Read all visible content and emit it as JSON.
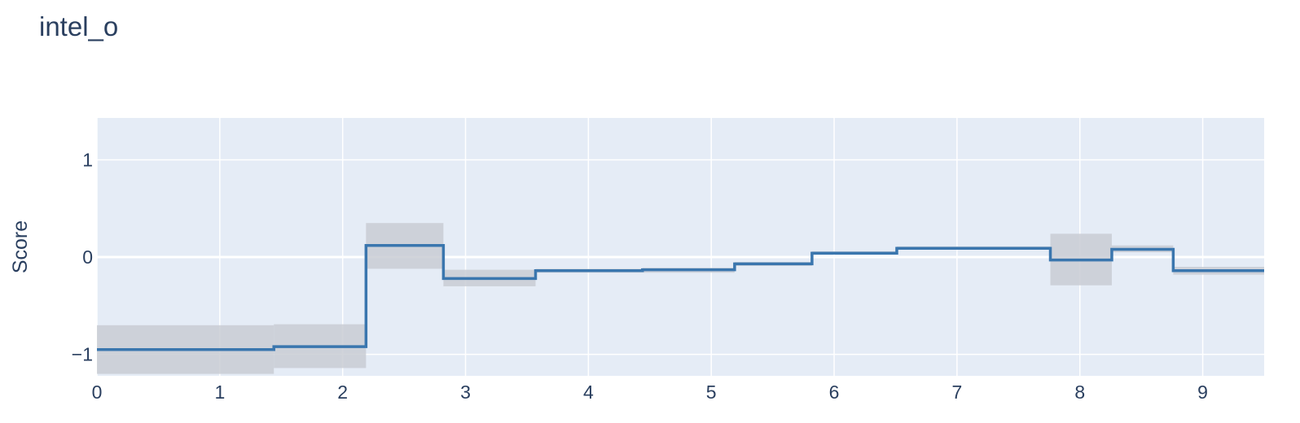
{
  "chart_data": {
    "type": "line",
    "line_shape": "step",
    "title": "intel_o",
    "xlabel": "",
    "ylabel": "Score",
    "xlim": [
      0,
      9.5
    ],
    "ylim": [
      -1.22,
      1.43
    ],
    "xticks": [
      0,
      1,
      2,
      3,
      4,
      5,
      6,
      7,
      8,
      9
    ],
    "yticks": [
      1,
      0,
      -1
    ],
    "ytick_labels": [
      "1",
      "0",
      "−1"
    ],
    "grid": true,
    "legend": "none",
    "colors": {
      "line": "#3a76ae",
      "band": "#c9ccd3",
      "plot_bg": "#e5ecf6",
      "grid": "#ffffff",
      "text": "#2a3f5f"
    },
    "series": [
      {
        "steps": [
          {
            "x0": 0.0,
            "x1": 1.44,
            "y": -0.95,
            "lower": -1.2,
            "upper": -0.7
          },
          {
            "x0": 1.44,
            "x1": 2.19,
            "y": -0.92,
            "lower": -1.14,
            "upper": -0.69
          },
          {
            "x0": 2.19,
            "x1": 2.82,
            "y": 0.12,
            "lower": -0.12,
            "upper": 0.35
          },
          {
            "x0": 2.82,
            "x1": 3.57,
            "y": -0.22,
            "lower": -0.3,
            "upper": -0.13
          },
          {
            "x0": 3.57,
            "x1": 4.44,
            "y": -0.14,
            "lower": -0.16,
            "upper": -0.12
          },
          {
            "x0": 4.44,
            "x1": 5.19,
            "y": -0.13,
            "lower": -0.16,
            "upper": -0.11
          },
          {
            "x0": 5.19,
            "x1": 5.82,
            "y": -0.07,
            "lower": -0.09,
            "upper": -0.05
          },
          {
            "x0": 5.82,
            "x1": 6.51,
            "y": 0.04,
            "lower": 0.03,
            "upper": 0.06
          },
          {
            "x0": 6.51,
            "x1": 7.76,
            "y": 0.09,
            "lower": 0.08,
            "upper": 0.11
          },
          {
            "x0": 7.76,
            "x1": 8.26,
            "y": -0.03,
            "lower": -0.29,
            "upper": 0.24
          },
          {
            "x0": 8.26,
            "x1": 8.76,
            "y": 0.08,
            "lower": 0.05,
            "upper": 0.12
          },
          {
            "x0": 8.76,
            "x1": 9.5,
            "y": -0.14,
            "lower": -0.18,
            "upper": -0.1
          }
        ]
      }
    ]
  }
}
